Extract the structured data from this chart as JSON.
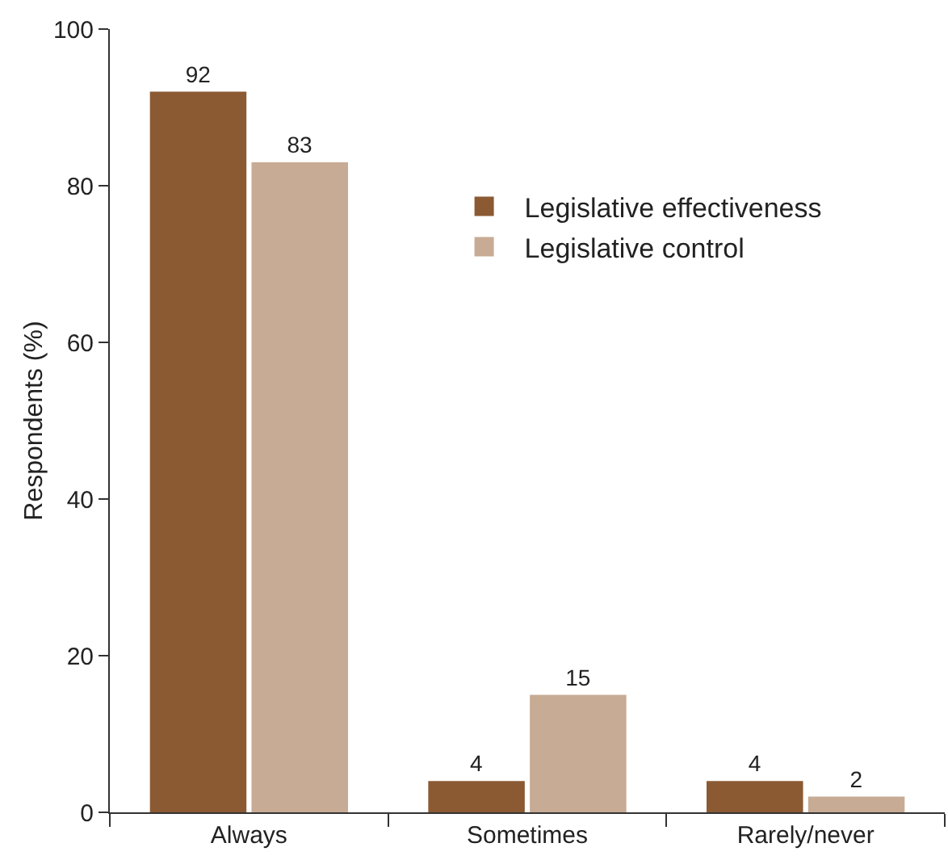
{
  "chart_data": {
    "type": "bar",
    "ylabel": "Respondents (%)",
    "categories": [
      "Always",
      "Sometimes",
      "Rarely/never"
    ],
    "series": [
      {
        "name": "Legislative effectiveness",
        "color": "#8b5a33",
        "values": [
          92,
          4,
          4
        ]
      },
      {
        "name": "Legislative control",
        "color": "#c8ab94",
        "values": [
          83,
          15,
          2
        ]
      }
    ],
    "ylim": [
      0,
      100
    ],
    "yticks": [
      0,
      20,
      40,
      60,
      80,
      100
    ],
    "grid": false,
    "legend": "top right",
    "data_labels": true
  }
}
